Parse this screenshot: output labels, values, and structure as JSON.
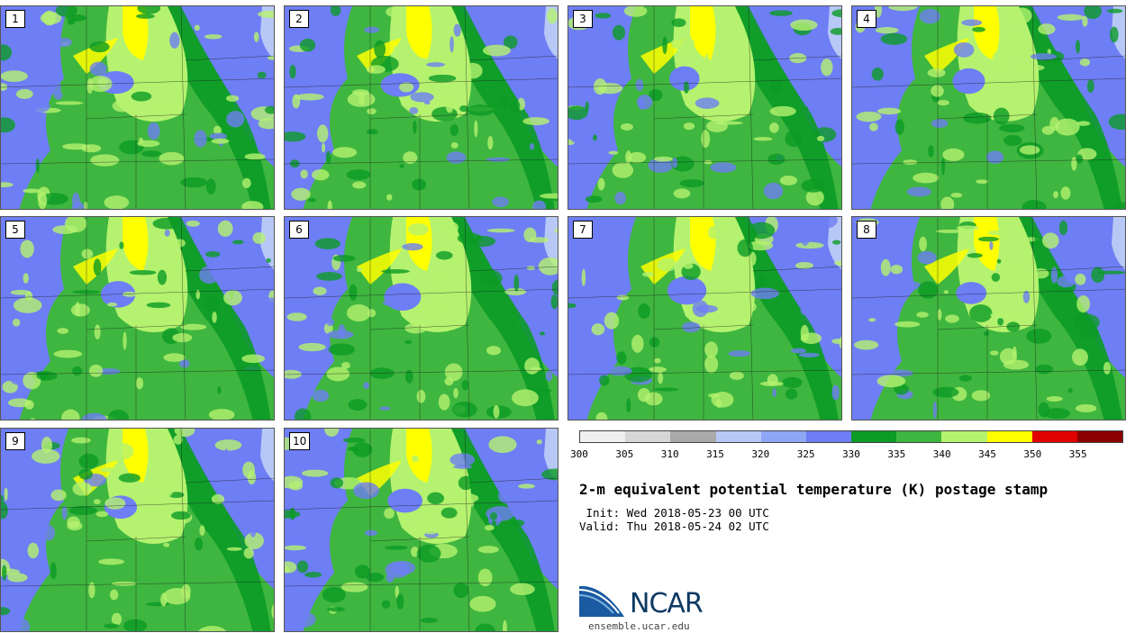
{
  "panels": [
    {
      "label": "1"
    },
    {
      "label": "2"
    },
    {
      "label": "3"
    },
    {
      "label": "4"
    },
    {
      "label": "5"
    },
    {
      "label": "6"
    },
    {
      "label": "7"
    },
    {
      "label": "8"
    },
    {
      "label": "9"
    },
    {
      "label": "10"
    }
  ],
  "colorbar": {
    "colors": [
      "#f0f0f0",
      "#d7d7d7",
      "#a9a9a9",
      "#b7c8f6",
      "#8ea6f6",
      "#6e7ef4",
      "#0b9b26",
      "#3fb63f",
      "#b5f26f",
      "#ffff00",
      "#e00000",
      "#8b0000"
    ],
    "ticks": [
      "300",
      "305",
      "310",
      "315",
      "320",
      "325",
      "330",
      "335",
      "340",
      "345",
      "350",
      "355"
    ]
  },
  "title": "2-m equivalent potential temperature (K) postage stamp",
  "init_line": " Init: Wed 2018-05-23 00 UTC",
  "valid_line": "Valid: Thu 2018-05-24 02 UTC",
  "logo": {
    "text": "NCAR",
    "url": "ensemble.ucar.edu"
  }
}
